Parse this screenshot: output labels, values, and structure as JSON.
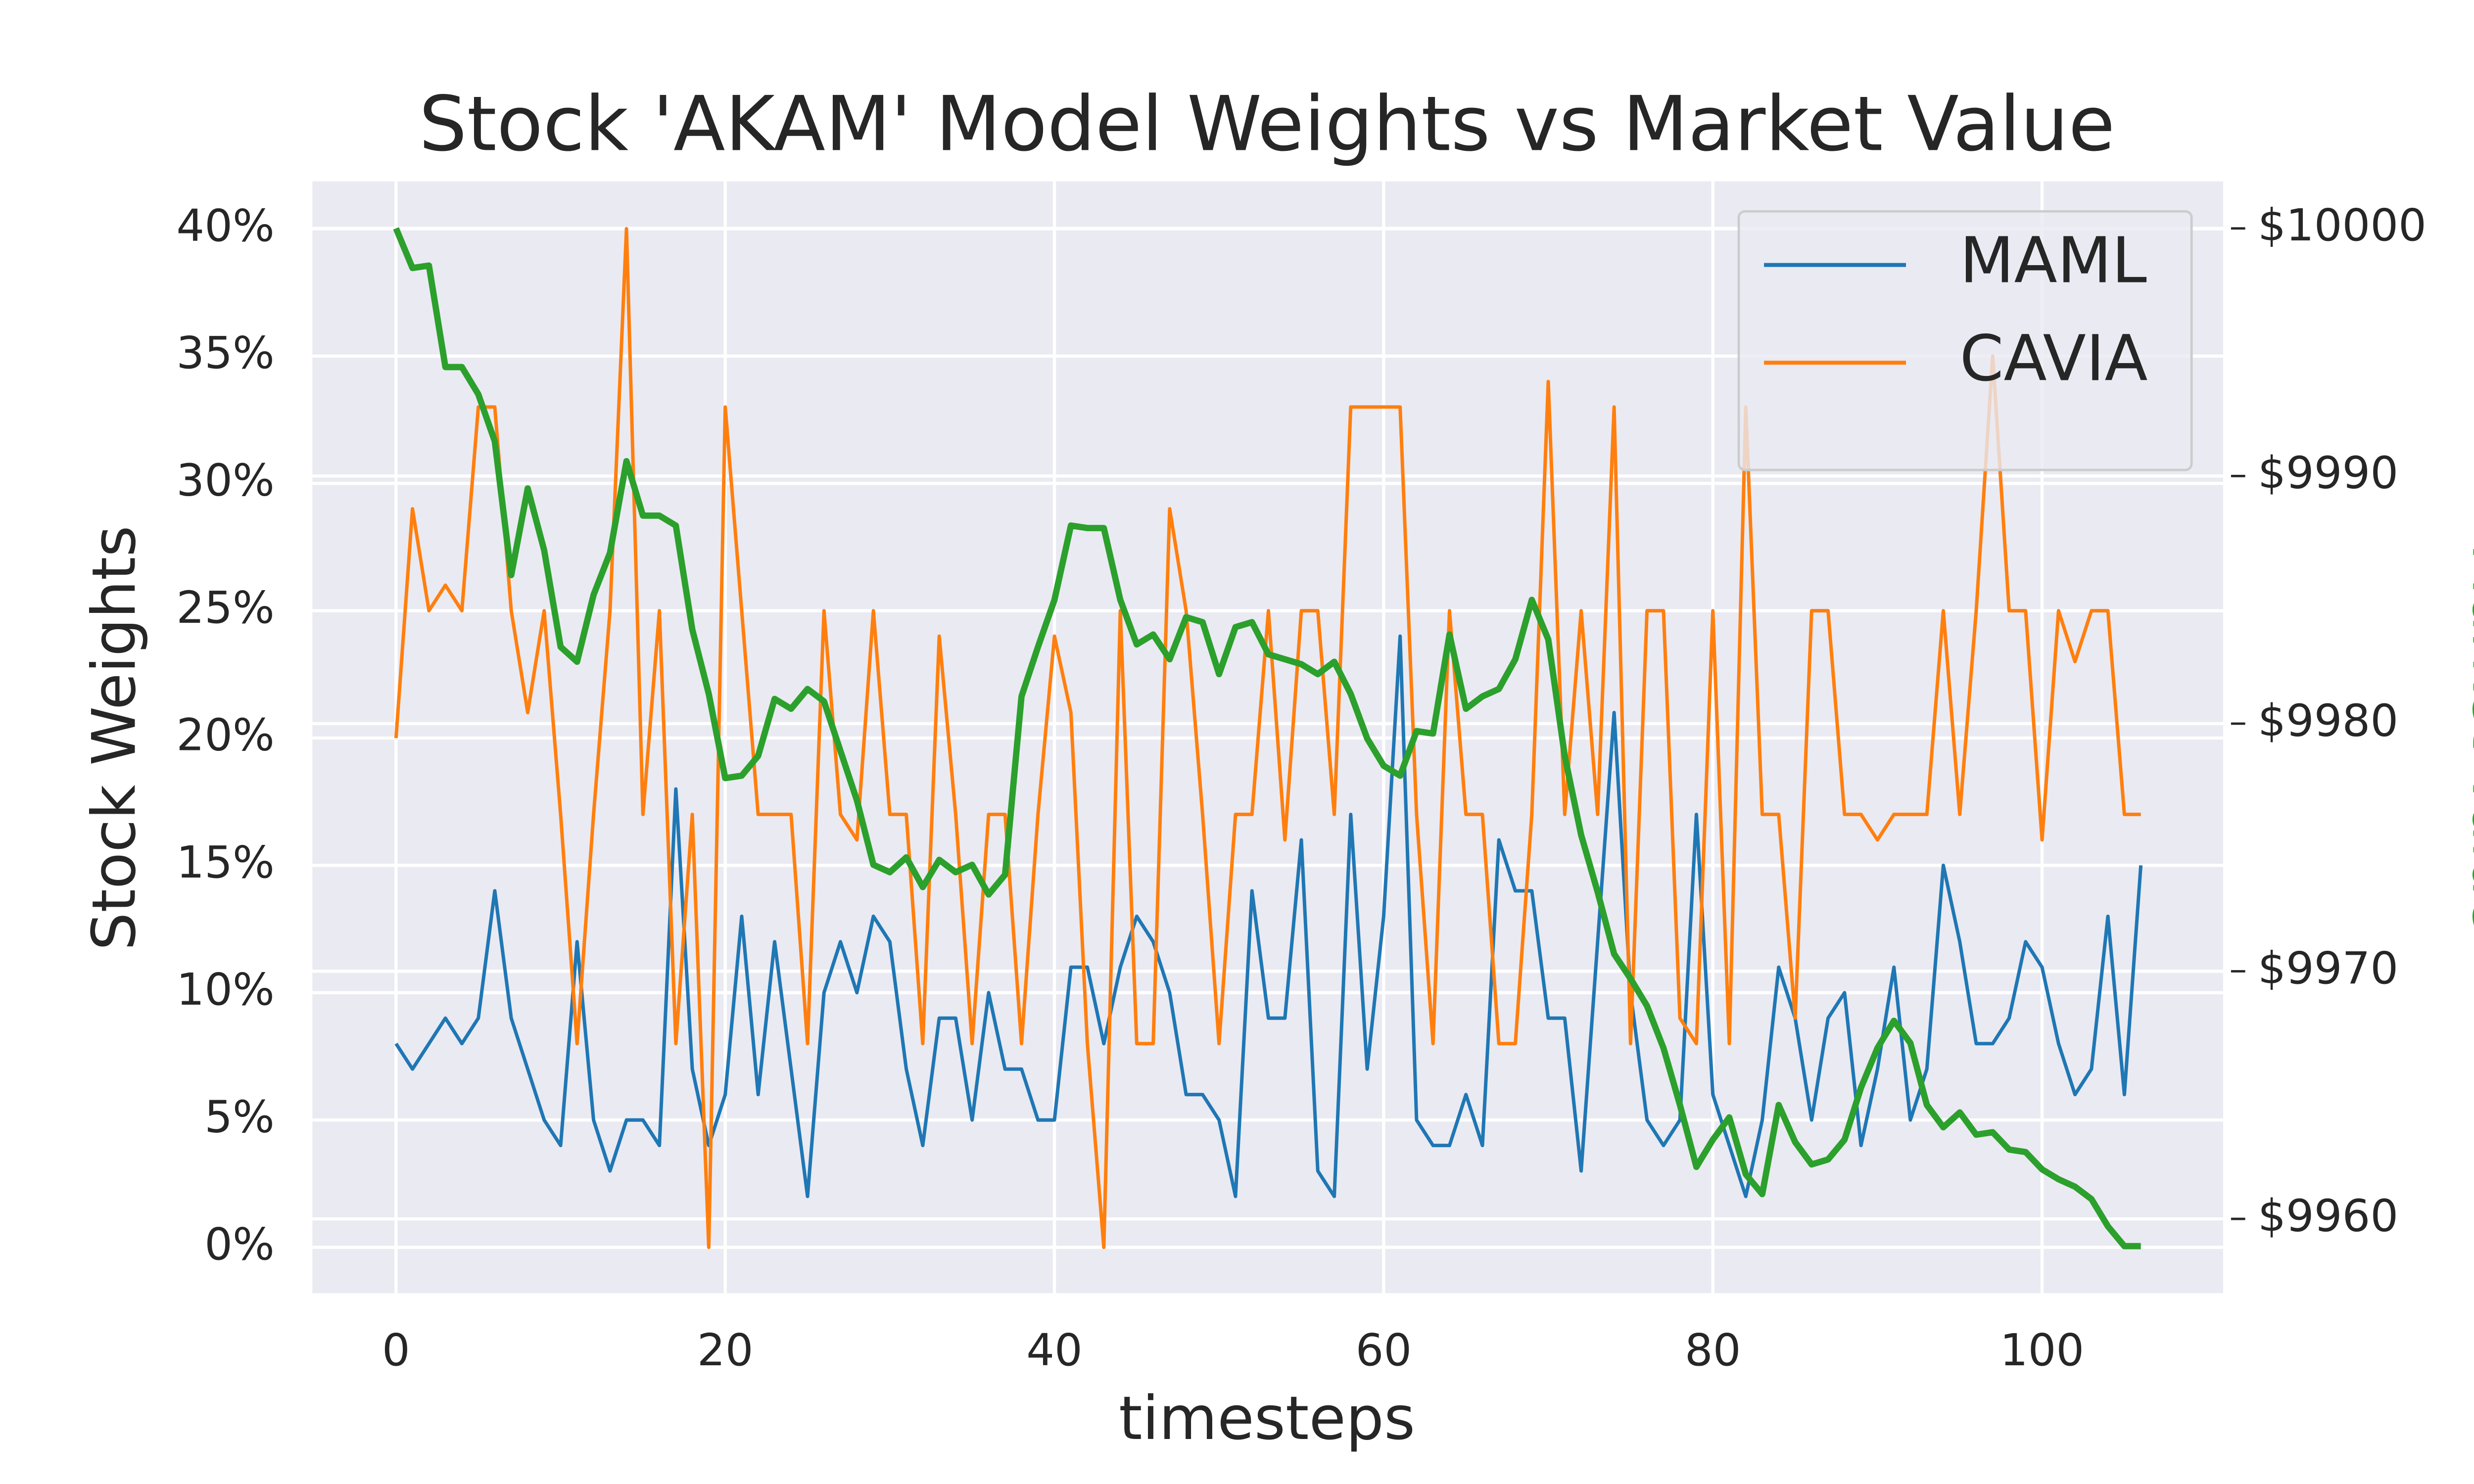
{
  "chart_data": {
    "type": "line",
    "title": "Stock 'AKAM' Model Weights vs Market Value",
    "xlabel": "timesteps",
    "ylabel": "Stock Weights",
    "y2label": "Market Value",
    "x": [
      0,
      1,
      2,
      3,
      4,
      5,
      6,
      7,
      8,
      9,
      10,
      11,
      12,
      13,
      14,
      15,
      16,
      17,
      18,
      19,
      20,
      21,
      22,
      23,
      24,
      25,
      26,
      27,
      28,
      29,
      30,
      31,
      32,
      33,
      34,
      35,
      36,
      37,
      38,
      39,
      40,
      41,
      42,
      43,
      44,
      45,
      46,
      47,
      48,
      49,
      50,
      51,
      52,
      53,
      54,
      55,
      56,
      57,
      58,
      59,
      60,
      61,
      62,
      63,
      64,
      65,
      66,
      67,
      68,
      69,
      70,
      71,
      72,
      73,
      74,
      75,
      76,
      77,
      78,
      79,
      80,
      81,
      82,
      83,
      84,
      85,
      86,
      87,
      88,
      89,
      90,
      91,
      92,
      93,
      94,
      95,
      96,
      97,
      98,
      99,
      100,
      101,
      102,
      103,
      104,
      105,
      106
    ],
    "series": [
      {
        "name": "MAML",
        "color": "#1f77b4",
        "values": [
          8,
          7,
          8,
          9,
          8,
          9,
          14,
          9,
          7,
          5,
          4,
          12,
          5,
          3,
          5,
          5,
          4,
          18,
          7,
          4,
          6,
          13,
          6,
          12,
          7,
          2,
          10,
          12,
          10,
          13,
          12,
          7,
          4,
          9,
          9,
          5,
          10,
          7,
          7,
          5,
          5,
          11,
          11,
          8,
          11,
          13,
          12,
          10,
          6,
          6,
          5,
          2,
          14,
          9,
          9,
          16,
          3,
          2,
          17,
          7,
          13,
          24,
          5,
          4,
          4,
          6,
          4,
          16,
          14,
          14,
          9,
          9,
          3,
          12,
          21,
          10,
          5,
          4,
          5,
          17,
          6,
          4,
          2,
          5,
          11,
          9,
          5,
          9,
          10,
          4,
          7,
          11,
          5,
          7,
          15,
          12,
          8,
          8,
          9,
          12,
          11,
          8,
          6,
          7,
          13,
          6,
          15
        ]
      },
      {
        "name": "CAVIA",
        "color": "#ff7f0e",
        "values": [
          20,
          29,
          25,
          26,
          25,
          33,
          33,
          25,
          21,
          25,
          17,
          8,
          17,
          25,
          40,
          17,
          25,
          8,
          17,
          0,
          33,
          25,
          17,
          17,
          17,
          8,
          25,
          17,
          16,
          25,
          17,
          17,
          8,
          24,
          17,
          8,
          17,
          17,
          8,
          17,
          24,
          21,
          8,
          0,
          25,
          8,
          8,
          29,
          25,
          17,
          8,
          17,
          17,
          25,
          16,
          25,
          25,
          17,
          33,
          33,
          33,
          33,
          17,
          8,
          25,
          17,
          17,
          8,
          8,
          17,
          34,
          17,
          25,
          17,
          33,
          8,
          25,
          25,
          9,
          8,
          25,
          8,
          33,
          17,
          17,
          9,
          25,
          25,
          17,
          17,
          16,
          17,
          17,
          17,
          25,
          17,
          25,
          35,
          25,
          25,
          16,
          25,
          23,
          25,
          25,
          17,
          17
        ]
      },
      {
        "color": "#2ca02c",
        "axis": "y2",
        "values": [
          10000,
          9998.4,
          9998.5,
          9994.4,
          9994.4,
          9993.3,
          9991.4,
          9986,
          9989.5,
          9987,
          9983.1,
          9982.5,
          9985.2,
          9986.9,
          9990.6,
          9988.4,
          9988.4,
          9988,
          9983.8,
          9981.2,
          9977.8,
          9977.9,
          9978.7,
          9981,
          9980.6,
          9981.4,
          9980.9,
          9978.9,
          9976.9,
          9974.3,
          9974,
          9974.6,
          9973.4,
          9974.5,
          9974,
          9974.3,
          9973.1,
          9973.9,
          9981.1,
          9983.1,
          9985,
          9988,
          9987.9,
          9987.9,
          9985,
          9983.2,
          9983.6,
          9982.6,
          9984.3,
          9984.1,
          9982,
          9983.9,
          9984.1,
          9982.8,
          9982.6,
          9982.4,
          9982,
          9982.5,
          9981.2,
          9979.4,
          9978.3,
          9977.9,
          9979.7,
          9979.6,
          9983.6,
          9980.6,
          9981.1,
          9981.4,
          9982.6,
          9985,
          9983.4,
          9978.7,
          9975.5,
          9973.2,
          9970.7,
          9969.7,
          9968.6,
          9966.9,
          9964.6,
          9962.1,
          9963.2,
          9964.1,
          9961.8,
          9961,
          9964.6,
          9963.1,
          9962.2,
          9962.4,
          9963.2,
          9965.3,
          9966.9,
          9968,
          9967.1,
          9964.6,
          9963.7,
          9964.3,
          9963.4,
          9963.5,
          9962.8,
          9962.7,
          9962,
          9961.6,
          9961.3,
          9960.8,
          9959.7,
          9958.9,
          9958.9
        ]
      }
    ],
    "xlim": [
      -5.08,
      111
    ],
    "xticks": [
      0,
      20,
      40,
      60,
      80,
      100
    ],
    "ylim": [
      -1.8,
      41.86
    ],
    "yticks": [
      {
        "value": 0,
        "label": "0%"
      },
      {
        "value": 5,
        "label": "5%"
      },
      {
        "value": 10,
        "label": "10%"
      },
      {
        "value": 15,
        "label": "15%"
      },
      {
        "value": 20,
        "label": "20%"
      },
      {
        "value": 25,
        "label": "25%"
      },
      {
        "value": 30,
        "label": "30%"
      },
      {
        "value": 35,
        "label": "35%"
      },
      {
        "value": 40,
        "label": "40%"
      }
    ],
    "y2lim": [
      9957,
      10001.9
    ],
    "y2ticks": [
      {
        "value": 9960,
        "label": "$9960"
      },
      {
        "value": 9970,
        "label": "$9970"
      },
      {
        "value": 9980,
        "label": "$9980"
      },
      {
        "value": 9990,
        "label": "$9990"
      },
      {
        "value": 10000,
        "label": "$10000"
      }
    ],
    "grid": true,
    "legend": "upper right"
  }
}
